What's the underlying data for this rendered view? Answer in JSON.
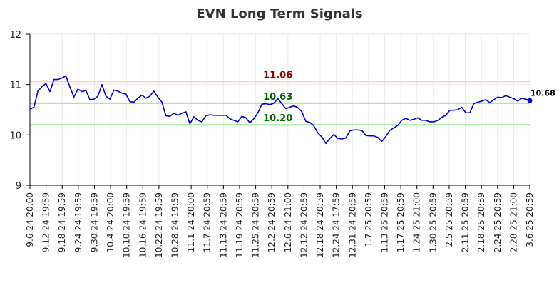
{
  "chart_data": {
    "type": "line",
    "title": "EVN Long Term Signals",
    "ylim": [
      9,
      12
    ],
    "yticks": [
      "9",
      "10",
      "11",
      "12"
    ],
    "grid": true,
    "colors": {
      "line": "#0000cc",
      "resistance": "#ffcccc",
      "support": "#90ee90",
      "resistance_label": "#8b0000",
      "support_label": "#006400"
    },
    "levels": [
      {
        "value": 11.06,
        "label": "11.06",
        "kind": "resistance"
      },
      {
        "value": 10.63,
        "label": "10.63",
        "kind": "support"
      },
      {
        "value": 10.2,
        "label": "10.20",
        "kind": "support"
      }
    ],
    "xtick_labels": [
      "9.6.24 20:00",
      "9.12.24 19:59",
      "9.18.24 19:59",
      "9.24.24 19:59",
      "9.30.24 19:59",
      "10.4.24 20:00",
      "10.10.24 19:59",
      "10.16.24 19:59",
      "10.22.24 19:59",
      "10.28.24 19:59",
      "11.1.24 20:00",
      "11.7.24 20:59",
      "11.13.24 20:59",
      "11.19.24 20:59",
      "11.25.24 20:59",
      "12.2.24 20:59",
      "12.6.24 21:00",
      "12.12.24 20:59",
      "12.18.24 20:59",
      "12.24.24 17:59",
      "12.31.24 20:59",
      "1.7.25 20:59",
      "1.13.25 20:59",
      "1.17.25 20:59",
      "1.24.25 21:00",
      "1.30.25 20:59",
      "2.5.25 20:59",
      "2.11.25 20:59",
      "2.18.25 20:59",
      "2.24.25 20:59",
      "2.28.25 21:00",
      "3.6.25 20:59"
    ],
    "values": [
      10.51,
      10.55,
      10.87,
      10.96,
      11.02,
      10.86,
      11.1,
      11.1,
      11.13,
      11.17,
      10.95,
      10.75,
      10.91,
      10.86,
      10.88,
      10.7,
      10.71,
      10.77,
      11.0,
      10.77,
      10.71,
      10.89,
      10.87,
      10.83,
      10.81,
      10.66,
      10.65,
      10.73,
      10.79,
      10.73,
      10.77,
      10.87,
      10.75,
      10.65,
      10.38,
      10.37,
      10.43,
      10.39,
      10.43,
      10.46,
      10.22,
      10.36,
      10.29,
      10.26,
      10.38,
      10.4,
      10.39,
      10.39,
      10.39,
      10.39,
      10.32,
      10.29,
      10.26,
      10.37,
      10.34,
      10.24,
      10.32,
      10.44,
      10.61,
      10.62,
      10.6,
      10.63,
      10.72,
      10.62,
      10.52,
      10.55,
      10.58,
      10.54,
      10.46,
      10.27,
      10.25,
      10.18,
      10.04,
      9.96,
      9.83,
      9.93,
      10.01,
      9.93,
      9.92,
      9.94,
      10.08,
      10.1,
      10.1,
      10.09,
      9.99,
      9.98,
      9.98,
      9.95,
      9.87,
      9.97,
      10.09,
      10.14,
      10.19,
      10.29,
      10.33,
      10.29,
      10.31,
      10.34,
      10.29,
      10.29,
      10.26,
      10.26,
      10.29,
      10.35,
      10.39,
      10.49,
      10.49,
      10.5,
      10.55,
      10.44,
      10.44,
      10.62,
      10.65,
      10.67,
      10.7,
      10.64,
      10.7,
      10.75,
      10.74,
      10.78,
      10.75,
      10.72,
      10.67,
      10.73,
      10.71,
      10.68
    ],
    "last_value_label": "10.68"
  }
}
